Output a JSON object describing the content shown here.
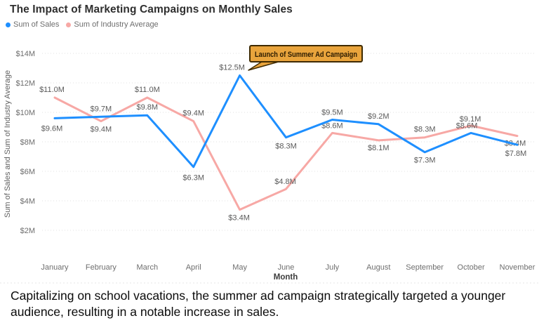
{
  "title": "The Impact of Marketing Campaigns on Monthly Sales",
  "legend": {
    "items": [
      {
        "label": "Sum of Sales",
        "color": "#1e8fff"
      },
      {
        "label": "Sum of Industry Average",
        "color": "#f7a8a5"
      }
    ]
  },
  "chart_data": {
    "type": "line",
    "x": [
      "January",
      "February",
      "March",
      "April",
      "May",
      "June",
      "July",
      "August",
      "September",
      "October",
      "November"
    ],
    "series": [
      {
        "name": "Sum of Sales",
        "color": "#1e8fff",
        "values": [
          9.6,
          9.7,
          9.8,
          6.3,
          12.5,
          8.3,
          9.5,
          9.2,
          7.3,
          8.6,
          7.8
        ],
        "labels": [
          "$9.6M",
          "$9.7M",
          "$9.8M",
          "$6.3M",
          "$12.5M",
          "$8.3M",
          "$9.5M",
          "$9.2M",
          "$7.3M",
          "$8.6M",
          "$7.8M"
        ]
      },
      {
        "name": "Sum of Industry Average",
        "color": "#f7a8a5",
        "values": [
          11.0,
          9.4,
          11.0,
          9.4,
          3.4,
          4.8,
          8.6,
          8.1,
          8.3,
          9.1,
          8.4
        ],
        "labels": [
          "$11.0M",
          "$9.4M",
          "$11.0M",
          "$9.4M",
          "$3.4M",
          "$4.8M",
          "$8.6M",
          "$8.1M",
          "$8.3M",
          "$9.1M",
          "$8.4M"
        ]
      }
    ],
    "xlabel": "Month",
    "ylabel": "Sum of Sales and Sum of Industry Average",
    "ylim": [
      2,
      14
    ],
    "yticks": [
      "$2M",
      "$4M",
      "$6M",
      "$8M",
      "$10M",
      "$12M",
      "$14M"
    ],
    "ytick_values": [
      2,
      4,
      6,
      8,
      10,
      12,
      14
    ],
    "grid": true,
    "legend_position": "top-left",
    "label_color": "#5a5a5a",
    "axis_color": "#6e6e6e",
    "grid_color": "#e2e2e2",
    "annotation": {
      "text": "Launch of Summer Ad Campaign",
      "target_x": "May",
      "target_series": "Sum of Sales",
      "fill": "#e9a43c",
      "border": "#3f2a00",
      "text_color": "#2b1b00"
    }
  },
  "caption": "Capitalizing on school vacations, the summer ad campaign strategically targeted a younger audience, resulting in a notable increase in sales."
}
